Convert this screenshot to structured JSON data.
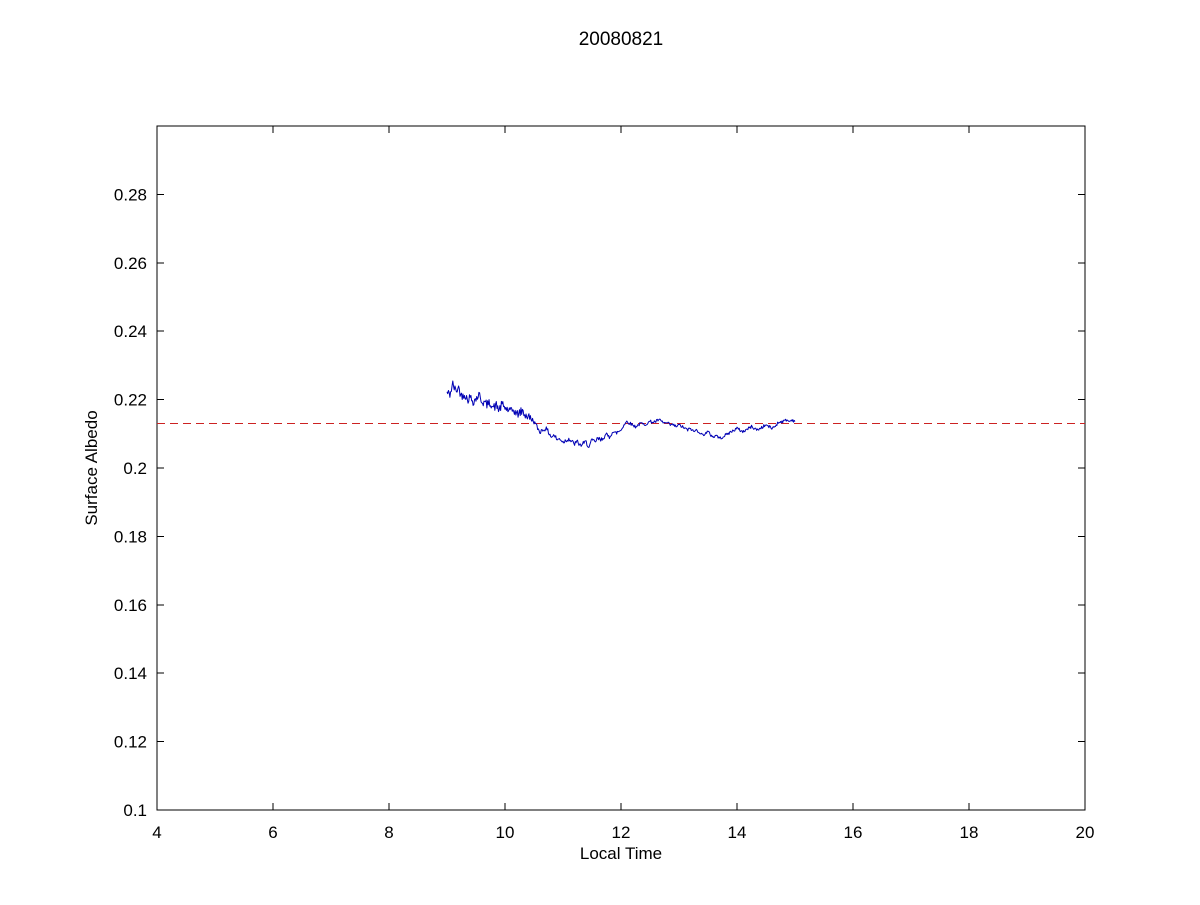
{
  "chart_data": {
    "type": "line",
    "title": "20080821",
    "xlabel": "Local Time",
    "ylabel": "Surface Albedo",
    "xlim": [
      4,
      20
    ],
    "ylim": [
      0.1,
      0.3
    ],
    "xticks": [
      4,
      6,
      8,
      10,
      12,
      14,
      16,
      18,
      20
    ],
    "yticks": [
      0.1,
      0.12,
      0.14,
      0.16,
      0.18,
      0.2,
      0.22,
      0.24,
      0.26,
      0.28
    ],
    "grid": false,
    "legend_position": "none",
    "ref_line": {
      "value": 0.213,
      "color": "#cc2222",
      "style": "dashed"
    },
    "noise": [
      {
        "from": 9.0,
        "to": 10.45,
        "amp": 0.0013
      },
      {
        "from": 10.45,
        "to": 12.0,
        "amp": 0.0007
      },
      {
        "from": 12.0,
        "to": 15.05,
        "amp": 0.00045
      }
    ],
    "series": [
      {
        "name": "surface-albedo",
        "color": "#0000b4",
        "points": [
          [
            9.0,
            0.222
          ],
          [
            9.05,
            0.2215
          ],
          [
            9.1,
            0.2245
          ],
          [
            9.15,
            0.2225
          ],
          [
            9.2,
            0.2235
          ],
          [
            9.25,
            0.221
          ],
          [
            9.3,
            0.2218
          ],
          [
            9.35,
            0.22
          ],
          [
            9.4,
            0.2207
          ],
          [
            9.45,
            0.2195
          ],
          [
            9.5,
            0.2202
          ],
          [
            9.55,
            0.2215
          ],
          [
            9.6,
            0.2196
          ],
          [
            9.65,
            0.219
          ],
          [
            9.7,
            0.2185
          ],
          [
            9.75,
            0.2192
          ],
          [
            9.8,
            0.2176
          ],
          [
            9.85,
            0.2183
          ],
          [
            9.9,
            0.217
          ],
          [
            9.95,
            0.2186
          ],
          [
            10.0,
            0.2176
          ],
          [
            10.05,
            0.217
          ],
          [
            10.1,
            0.2164
          ],
          [
            10.15,
            0.2171
          ],
          [
            10.2,
            0.2156
          ],
          [
            10.25,
            0.2162
          ],
          [
            10.3,
            0.2166
          ],
          [
            10.35,
            0.2155
          ],
          [
            10.4,
            0.215
          ],
          [
            10.45,
            0.2144
          ],
          [
            10.5,
            0.2136
          ],
          [
            10.55,
            0.212
          ],
          [
            10.6,
            0.2106
          ],
          [
            10.65,
            0.2111
          ],
          [
            10.7,
            0.2116
          ],
          [
            10.75,
            0.2105
          ],
          [
            10.8,
            0.2091
          ],
          [
            10.85,
            0.2096
          ],
          [
            10.9,
            0.2082
          ],
          [
            10.95,
            0.2086
          ],
          [
            11.0,
            0.2076
          ],
          [
            11.05,
            0.2081
          ],
          [
            11.1,
            0.2086
          ],
          [
            11.15,
            0.2076
          ],
          [
            11.2,
            0.2071
          ],
          [
            11.25,
            0.2076
          ],
          [
            11.3,
            0.2066
          ],
          [
            11.35,
            0.2071
          ],
          [
            11.4,
            0.2076
          ],
          [
            11.45,
            0.2061
          ],
          [
            11.5,
            0.2081
          ],
          [
            11.55,
            0.2076
          ],
          [
            11.6,
            0.2086
          ],
          [
            11.65,
            0.2081
          ],
          [
            11.7,
            0.2091
          ],
          [
            11.75,
            0.2096
          ],
          [
            11.8,
            0.2091
          ],
          [
            11.85,
            0.2106
          ],
          [
            11.9,
            0.2101
          ],
          [
            11.95,
            0.2106
          ],
          [
            12.0,
            0.2111
          ],
          [
            12.05,
            0.2126
          ],
          [
            12.1,
            0.2136
          ],
          [
            12.15,
            0.2131
          ],
          [
            12.2,
            0.2126
          ],
          [
            12.25,
            0.2121
          ],
          [
            12.3,
            0.2126
          ],
          [
            12.35,
            0.2131
          ],
          [
            12.4,
            0.2126
          ],
          [
            12.45,
            0.2131
          ],
          [
            12.5,
            0.2136
          ],
          [
            12.55,
            0.2134
          ],
          [
            12.6,
            0.2136
          ],
          [
            12.65,
            0.2141
          ],
          [
            12.7,
            0.2136
          ],
          [
            12.75,
            0.2131
          ],
          [
            12.8,
            0.2131
          ],
          [
            12.85,
            0.2126
          ],
          [
            12.9,
            0.2126
          ],
          [
            12.95,
            0.2121
          ],
          [
            13.0,
            0.2126
          ],
          [
            13.05,
            0.2121
          ],
          [
            13.1,
            0.2116
          ],
          [
            13.15,
            0.2111
          ],
          [
            13.2,
            0.2116
          ],
          [
            13.25,
            0.2106
          ],
          [
            13.3,
            0.2111
          ],
          [
            13.35,
            0.2106
          ],
          [
            13.4,
            0.2096
          ],
          [
            13.45,
            0.2101
          ],
          [
            13.5,
            0.2106
          ],
          [
            13.55,
            0.2096
          ],
          [
            13.6,
            0.2091
          ],
          [
            13.65,
            0.2096
          ],
          [
            13.7,
            0.2086
          ],
          [
            13.75,
            0.2091
          ],
          [
            13.8,
            0.2096
          ],
          [
            13.85,
            0.2101
          ],
          [
            13.9,
            0.2106
          ],
          [
            13.95,
            0.2111
          ],
          [
            14.0,
            0.2116
          ],
          [
            14.05,
            0.2111
          ],
          [
            14.1,
            0.2106
          ],
          [
            14.15,
            0.2111
          ],
          [
            14.2,
            0.2116
          ],
          [
            14.25,
            0.2121
          ],
          [
            14.3,
            0.2116
          ],
          [
            14.35,
            0.2111
          ],
          [
            14.4,
            0.2116
          ],
          [
            14.45,
            0.2121
          ],
          [
            14.5,
            0.2126
          ],
          [
            14.55,
            0.2121
          ],
          [
            14.6,
            0.2116
          ],
          [
            14.65,
            0.2121
          ],
          [
            14.7,
            0.2131
          ],
          [
            14.75,
            0.2136
          ],
          [
            14.8,
            0.2136
          ],
          [
            14.85,
            0.2141
          ],
          [
            14.9,
            0.2136
          ],
          [
            14.95,
            0.2141
          ],
          [
            15.0,
            0.2136
          ]
        ]
      }
    ]
  }
}
